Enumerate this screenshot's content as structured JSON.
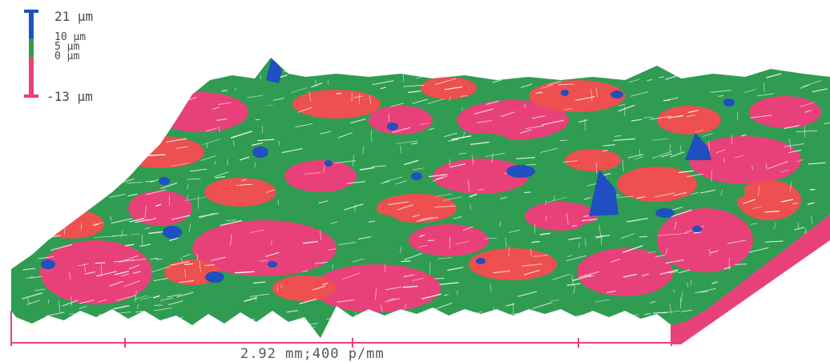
{
  "legend": {
    "max_label": "21 µm",
    "mid_labels": [
      "10 µm",
      "5 µm",
      "0 µm"
    ],
    "min_label": "-13 µm"
  },
  "scale": {
    "label": "2.92 mm;400 p/mm"
  },
  "colors": {
    "high": "#1f4fc0",
    "upper_mid": "#2f9c52",
    "lower_mid": "#ee4f4f",
    "low": "#e8417a",
    "mesh_line": "#ffffff",
    "axis": "#e8417a"
  }
}
